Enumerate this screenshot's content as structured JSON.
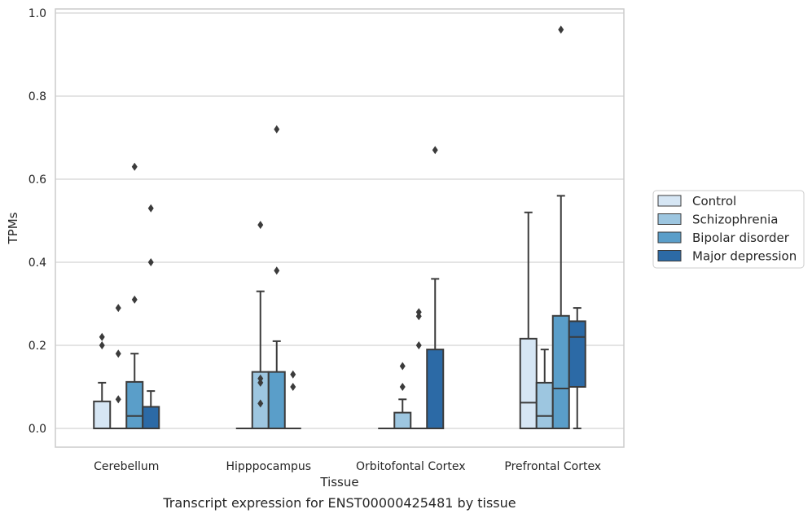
{
  "caption": "Transcript expression for ENST00000425481 by tissue",
  "chart_data": {
    "type": "box",
    "xlabel": "Tissue",
    "ylabel": "TPMs",
    "ylim": [
      -0.045,
      1.01
    ],
    "yticks": [
      "0.0",
      "0.2",
      "0.4",
      "0.6",
      "0.8",
      "1.0"
    ],
    "ytick_values": [
      0,
      0.2,
      0.4,
      0.6,
      0.8,
      1.0
    ],
    "grid": "horizontal",
    "legend_position": "right",
    "categories": [
      "Cerebellum",
      "Hipppocampus",
      "Orbitofontal Cortex",
      "Prefrontal Cortex"
    ],
    "series": [
      {
        "name": "Control",
        "color": "#d6e6f4",
        "boxes": [
          {
            "q1": 0,
            "median": 0,
            "q3": 0.065,
            "whislo": 0,
            "whishi": 0.11,
            "fliers": [
              0.2,
              0.22
            ]
          },
          {
            "q1": 0,
            "median": 0,
            "q3": 0,
            "whislo": 0,
            "whishi": 0,
            "fliers": []
          },
          {
            "q1": 0,
            "median": 0,
            "q3": 0,
            "whislo": 0,
            "whishi": 0,
            "fliers": []
          },
          {
            "q1": 0,
            "median": 0.062,
            "q3": 0.216,
            "whislo": 0,
            "whishi": 0.52,
            "fliers": []
          }
        ]
      },
      {
        "name": "Schizophrenia",
        "color": "#9dc6e0",
        "boxes": [
          {
            "q1": 0,
            "median": 0,
            "q3": 0,
            "whislo": 0,
            "whishi": 0,
            "fliers": [
              0.07,
              0.18,
              0.29
            ]
          },
          {
            "q1": 0,
            "median": 0,
            "q3": 0.136,
            "whislo": 0,
            "whishi": 0.33,
            "fliers": [
              0.06,
              0.11,
              0.12,
              0.49
            ]
          },
          {
            "q1": 0,
            "median": 0,
            "q3": 0.038,
            "whislo": 0,
            "whishi": 0.07,
            "fliers": [
              0.1,
              0.15
            ]
          },
          {
            "q1": 0,
            "median": 0.03,
            "q3": 0.11,
            "whislo": 0,
            "whishi": 0.19,
            "fliers": []
          }
        ]
      },
      {
        "name": "Bipolar disorder",
        "color": "#5a9ec9",
        "boxes": [
          {
            "q1": 0,
            "median": 0.03,
            "q3": 0.112,
            "whislo": 0,
            "whishi": 0.18,
            "fliers": [
              0.31,
              0.63
            ]
          },
          {
            "q1": 0,
            "median": 0,
            "q3": 0.136,
            "whislo": 0,
            "whishi": 0.21,
            "fliers": [
              0.38,
              0.72
            ]
          },
          {
            "q1": 0,
            "median": 0,
            "q3": 0,
            "whislo": 0,
            "whishi": 0,
            "fliers": [
              0.2,
              0.27,
              0.28
            ]
          },
          {
            "q1": 0,
            "median": 0.096,
            "q3": 0.271,
            "whislo": 0,
            "whishi": 0.56,
            "fliers": [
              0.96
            ]
          }
        ]
      },
      {
        "name": "Major depression",
        "color": "#2c6aa6",
        "boxes": [
          {
            "q1": 0,
            "median": 0,
            "q3": 0.052,
            "whislo": 0,
            "whishi": 0.09,
            "fliers": [
              0.4,
              0.53
            ]
          },
          {
            "q1": 0,
            "median": 0,
            "q3": 0,
            "whislo": 0,
            "whishi": 0,
            "fliers": [
              0.1,
              0.13
            ]
          },
          {
            "q1": 0,
            "median": 0,
            "q3": 0.19,
            "whislo": 0,
            "whishi": 0.36,
            "fliers": [
              0.67
            ]
          },
          {
            "q1": 0.1,
            "median": 0.22,
            "q3": 0.258,
            "whislo": 0,
            "whishi": 0.29,
            "fliers": []
          }
        ]
      }
    ]
  }
}
